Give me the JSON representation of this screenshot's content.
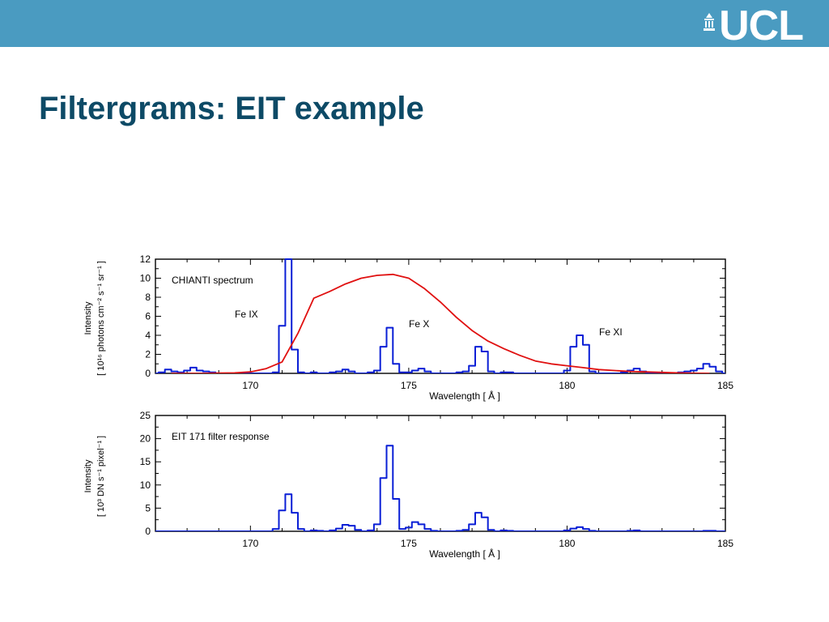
{
  "header": {
    "logo_text": "UCL",
    "accent": "#4a9bc1",
    "title_color": "#0d4a66"
  },
  "slide": {
    "title": "Filtergrams: EIT example"
  },
  "chart_data": [
    {
      "type": "line",
      "title": "",
      "annotation_title": "CHIANTI spectrum",
      "xlabel": "Wavelength [ Å ]",
      "ylabel_line1": "Intensity",
      "ylabel_line2": "[ 10¹⁶ photons cm⁻² s⁻¹ sr⁻¹ ]",
      "xlim": [
        167,
        185
      ],
      "ylim": [
        0,
        12
      ],
      "xticks": [
        170,
        175,
        180,
        185
      ],
      "yticks": [
        0,
        2,
        4,
        6,
        8,
        10,
        12
      ],
      "annotations": [
        "Fe IX",
        "Fe X",
        "Fe XI"
      ],
      "series": [
        {
          "color": "#0a1fd6",
          "style": "steps",
          "x": [
            167.0,
            167.2,
            167.4,
            167.6,
            167.8,
            168.0,
            168.2,
            168.4,
            168.6,
            168.8,
            169.0,
            169.2,
            169.4,
            169.6,
            169.8,
            170.0,
            170.2,
            170.4,
            170.6,
            170.8,
            171.0,
            171.2,
            171.4,
            171.6,
            171.8,
            172.0,
            172.2,
            172.4,
            172.6,
            172.8,
            173.0,
            173.2,
            173.4,
            173.6,
            173.8,
            174.0,
            174.2,
            174.4,
            174.6,
            174.8,
            175.0,
            175.2,
            175.4,
            175.6,
            175.8,
            176.0,
            176.2,
            176.4,
            176.6,
            176.8,
            177.0,
            177.2,
            177.4,
            177.6,
            177.8,
            178.0,
            178.2,
            178.4,
            178.6,
            178.8,
            179.0,
            179.2,
            179.4,
            179.6,
            179.8,
            180.0,
            180.2,
            180.4,
            180.6,
            180.8,
            181.0,
            181.2,
            181.4,
            181.6,
            181.8,
            182.0,
            182.2,
            182.4,
            182.6,
            182.8,
            183.0,
            183.2,
            183.4,
            183.6,
            183.8,
            184.0,
            184.2,
            184.4,
            184.6,
            184.8,
            185.0
          ],
          "values": [
            0.0,
            0.1,
            0.4,
            0.2,
            0.1,
            0.3,
            0.6,
            0.3,
            0.2,
            0.1,
            0.0,
            0.0,
            0.0,
            0.0,
            0.0,
            0.0,
            0.0,
            0.0,
            0.0,
            0.1,
            5.0,
            12.0,
            2.5,
            0.1,
            0.0,
            0.1,
            0.0,
            0.0,
            0.1,
            0.2,
            0.4,
            0.2,
            0.0,
            0.0,
            0.1,
            0.3,
            2.8,
            4.8,
            1.0,
            0.1,
            0.1,
            0.3,
            0.5,
            0.2,
            0.0,
            0.0,
            0.0,
            0.0,
            0.1,
            0.2,
            0.8,
            2.8,
            2.3,
            0.2,
            0.0,
            0.1,
            0.1,
            0.0,
            0.0,
            0.0,
            0.0,
            0.0,
            0.0,
            0.0,
            0.0,
            0.3,
            2.8,
            4.0,
            3.0,
            0.2,
            0.0,
            0.0,
            0.0,
            0.0,
            0.1,
            0.3,
            0.5,
            0.2,
            0.0,
            0.0,
            0.0,
            0.0,
            0.0,
            0.1,
            0.2,
            0.3,
            0.5,
            1.0,
            0.7,
            0.2,
            0.0
          ]
        },
        {
          "color": "#e01010",
          "style": "line",
          "x": [
            167.5,
            168.5,
            169.5,
            170.0,
            170.5,
            171.0,
            171.5,
            172.0,
            172.5,
            173.0,
            173.5,
            174.0,
            174.5,
            175.0,
            175.5,
            176.0,
            176.5,
            177.0,
            177.5,
            178.0,
            178.5,
            179.0,
            179.5,
            180.0,
            180.5,
            181.0,
            181.5,
            182.0,
            182.5,
            183.0,
            183.5,
            184.0,
            184.5
          ],
          "values": [
            0.0,
            0.0,
            0.05,
            0.15,
            0.5,
            1.2,
            4.2,
            7.9,
            8.6,
            9.4,
            10.0,
            10.3,
            10.4,
            10.0,
            8.9,
            7.5,
            5.9,
            4.5,
            3.4,
            2.6,
            1.9,
            1.3,
            1.0,
            0.8,
            0.6,
            0.4,
            0.3,
            0.2,
            0.15,
            0.1,
            0.05,
            0.02,
            0.0
          ]
        }
      ]
    },
    {
      "type": "line",
      "title": "",
      "annotation_title": "EIT 171 filter response",
      "xlabel": "Wavelength [ Å ]",
      "ylabel_line1": "Intensity",
      "ylabel_line2": "[ 10³ DN s⁻¹ pixel⁻¹ ]",
      "xlim": [
        167,
        185
      ],
      "ylim": [
        0,
        25
      ],
      "xticks": [
        170,
        175,
        180,
        185
      ],
      "yticks": [
        0,
        5,
        10,
        15,
        20,
        25
      ],
      "annotations": [],
      "series": [
        {
          "color": "#0a1fd6",
          "style": "steps",
          "x": [
            167.0,
            167.2,
            167.4,
            167.6,
            167.8,
            168.0,
            168.2,
            168.4,
            168.6,
            168.8,
            169.0,
            169.2,
            169.4,
            169.6,
            169.8,
            170.0,
            170.2,
            170.4,
            170.6,
            170.8,
            171.0,
            171.2,
            171.4,
            171.6,
            171.8,
            172.0,
            172.2,
            172.4,
            172.6,
            172.8,
            173.0,
            173.2,
            173.4,
            173.6,
            173.8,
            174.0,
            174.2,
            174.4,
            174.6,
            174.8,
            175.0,
            175.2,
            175.4,
            175.6,
            175.8,
            176.0,
            176.2,
            176.4,
            176.6,
            176.8,
            177.0,
            177.2,
            177.4,
            177.6,
            177.8,
            178.0,
            178.2,
            178.4,
            178.6,
            178.8,
            179.0,
            179.2,
            179.4,
            179.6,
            179.8,
            180.0,
            180.2,
            180.4,
            180.6,
            180.8,
            181.0,
            181.2,
            181.4,
            181.6,
            181.8,
            182.0,
            182.2,
            182.4,
            182.6,
            182.8,
            183.0,
            183.2,
            183.4,
            183.6,
            183.8,
            184.0,
            184.2,
            184.4,
            184.6,
            184.8,
            185.0
          ],
          "values": [
            0,
            0,
            0,
            0,
            0,
            0,
            0,
            0,
            0,
            0,
            0,
            0,
            0,
            0,
            0,
            0,
            0,
            0,
            0,
            0.5,
            4.5,
            8.0,
            4.0,
            0.5,
            0,
            0.2,
            0.1,
            0,
            0.2,
            0.6,
            1.4,
            1.2,
            0.3,
            0,
            0.2,
            1.5,
            11.5,
            18.5,
            7.0,
            0.5,
            0.8,
            2.0,
            1.5,
            0.5,
            0.1,
            0,
            0,
            0,
            0.1,
            0.3,
            1.5,
            4.0,
            3.0,
            0.3,
            0,
            0.2,
            0.1,
            0,
            0,
            0,
            0,
            0,
            0,
            0,
            0,
            0.2,
            0.6,
            0.9,
            0.5,
            0.1,
            0,
            0,
            0,
            0,
            0,
            0.1,
            0.2,
            0,
            0,
            0,
            0,
            0,
            0,
            0,
            0,
            0,
            0,
            0.1,
            0.1,
            0,
            0
          ]
        }
      ]
    }
  ]
}
